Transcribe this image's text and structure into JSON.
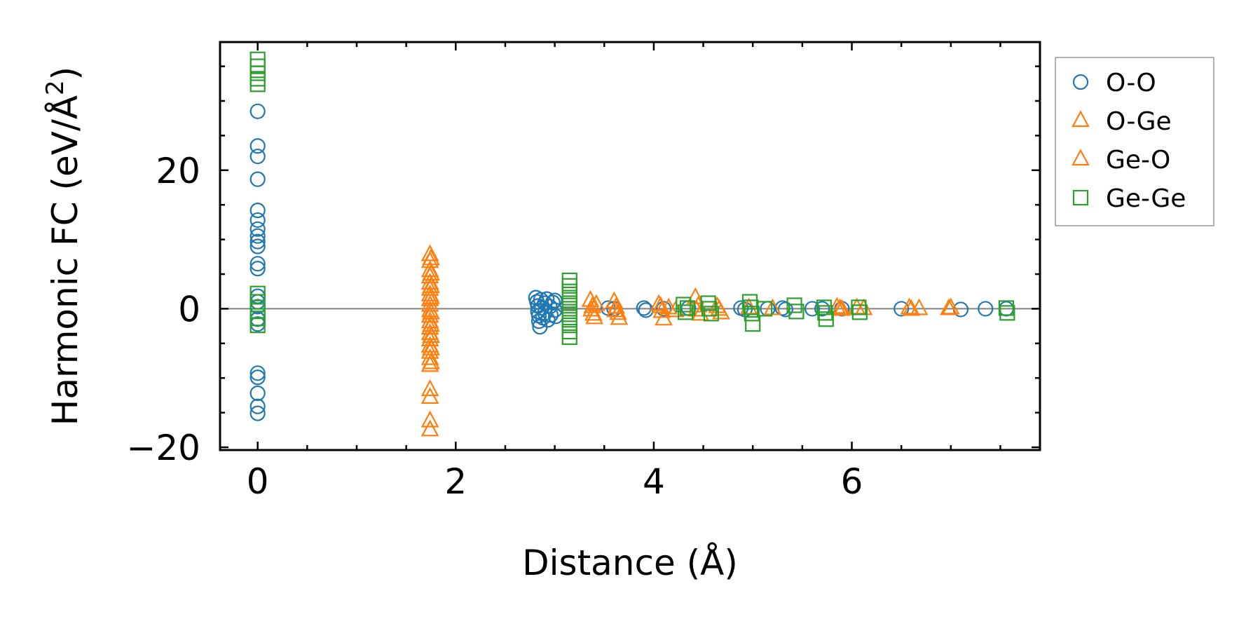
{
  "chart_data": {
    "type": "scatter",
    "xlabel": "Distance (Å)",
    "ylabel_main": "Harmonic FC (eV/Å",
    "ylabel_sup": "2",
    "ylabel_end": ")",
    "xlim": [
      -0.38,
      7.9
    ],
    "ylim": [
      -20.4,
      38.5
    ],
    "x_ticks": [
      0,
      2,
      4,
      6
    ],
    "x_tick_labels": [
      "0",
      "2",
      "4",
      "6"
    ],
    "y_ticks": [
      -20,
      0,
      20
    ],
    "y_tick_labels": [
      "−20",
      "0",
      "20"
    ],
    "zero_line": 0,
    "grid": false,
    "legend_position": "outside-right",
    "legend": [
      {
        "label": "O-O",
        "marker": "circle",
        "color": "#1f77b4"
      },
      {
        "label": "O-Ge",
        "marker": "triangle",
        "color": "#ff7f0e"
      },
      {
        "label": "Ge-O",
        "marker": "triangle",
        "color": "#ff7f0e"
      },
      {
        "label": "Ge-Ge",
        "marker": "square",
        "color": "#2ca02c"
      }
    ],
    "series": [
      {
        "name": "O-O",
        "marker": "circle",
        "color": "#1f77b4",
        "points": [
          [
            0,
            28.5
          ],
          [
            0,
            23.5
          ],
          [
            0,
            22.0
          ],
          [
            0,
            18.7
          ],
          [
            0,
            14.2
          ],
          [
            0,
            12.8
          ],
          [
            0,
            11.5
          ],
          [
            0,
            10.5
          ],
          [
            0,
            9.7
          ],
          [
            0,
            9.0
          ],
          [
            0,
            6.5
          ],
          [
            0,
            5.8
          ],
          [
            0,
            1.8
          ],
          [
            0,
            1.0
          ],
          [
            0,
            0.3
          ],
          [
            0,
            -1.5
          ],
          [
            0,
            -2.2
          ],
          [
            0,
            -9.3
          ],
          [
            0,
            -9.9
          ],
          [
            0,
            -12.2
          ],
          [
            0,
            -14.1
          ],
          [
            0,
            -15.1
          ],
          [
            2.81,
            1.6
          ],
          [
            2.82,
            1.0
          ],
          [
            2.83,
            0.4
          ],
          [
            2.83,
            -0.4
          ],
          [
            2.84,
            -1.0
          ],
          [
            2.84,
            -1.8
          ],
          [
            2.85,
            -2.6
          ],
          [
            2.86,
            1.3
          ],
          [
            2.87,
            0.1
          ],
          [
            2.88,
            -1.3
          ],
          [
            2.9,
            0.8
          ],
          [
            2.9,
            -0.6
          ],
          [
            2.92,
            1.4
          ],
          [
            2.93,
            -1.6
          ],
          [
            2.95,
            0.3
          ],
          [
            2.96,
            -0.9
          ],
          [
            2.98,
            0.9
          ],
          [
            3.0,
            -0.2
          ],
          [
            3.0,
            1.2
          ],
          [
            3.01,
            -1.1
          ],
          [
            3.54,
            0.1
          ],
          [
            3.6,
            0.0
          ],
          [
            3.9,
            0.1
          ],
          [
            3.92,
            -0.2
          ],
          [
            4.1,
            0.0
          ],
          [
            4.35,
            0.1
          ],
          [
            4.88,
            0.1
          ],
          [
            4.92,
            -0.1
          ],
          [
            5.15,
            0.0
          ],
          [
            5.3,
            0.1
          ],
          [
            5.33,
            -0.1
          ],
          [
            5.6,
            0.0
          ],
          [
            5.7,
            0.0
          ],
          [
            5.9,
            0.0
          ],
          [
            6.5,
            0.0
          ],
          [
            7.1,
            -0.1
          ],
          [
            7.35,
            0.0
          ],
          [
            7.56,
            0.0
          ]
        ]
      },
      {
        "name": "O-Ge",
        "marker": "triangle",
        "color": "#ff7f0e",
        "points": [
          [
            1.74,
            7.8
          ],
          [
            1.74,
            6.8
          ],
          [
            1.74,
            5.5
          ],
          [
            1.74,
            4.6
          ],
          [
            1.74,
            3.7
          ],
          [
            1.74,
            2.8
          ],
          [
            1.74,
            2.0
          ],
          [
            1.74,
            1.3
          ],
          [
            1.74,
            0.5
          ],
          [
            1.74,
            -0.3
          ],
          [
            1.74,
            -1.1
          ],
          [
            1.74,
            -1.9
          ],
          [
            1.74,
            -2.8
          ],
          [
            1.74,
            -3.6
          ],
          [
            1.74,
            -4.5
          ],
          [
            1.74,
            -5.4
          ],
          [
            1.74,
            -6.3
          ],
          [
            1.74,
            -7.2
          ],
          [
            1.74,
            -8.2
          ],
          [
            1.74,
            -11.7
          ],
          [
            1.74,
            -12.8
          ],
          [
            1.74,
            -16.2
          ],
          [
            1.74,
            -17.5
          ],
          [
            3.36,
            1.2
          ],
          [
            3.38,
            0.3
          ],
          [
            3.39,
            -0.8
          ],
          [
            3.4,
            -1.3
          ],
          [
            3.42,
            0.6
          ],
          [
            3.6,
            1.0
          ],
          [
            3.62,
            0.2
          ],
          [
            3.64,
            -0.7
          ],
          [
            3.65,
            -1.4
          ],
          [
            4.05,
            0.6
          ],
          [
            4.08,
            -0.4
          ],
          [
            4.1,
            -1.5
          ],
          [
            4.15,
            0.1
          ],
          [
            4.22,
            -0.3
          ],
          [
            4.42,
            1.6
          ],
          [
            4.45,
            0.4
          ],
          [
            4.47,
            -0.8
          ],
          [
            4.64,
            0.3
          ],
          [
            4.68,
            -0.6
          ],
          [
            4.96,
            0.1
          ],
          [
            5.2,
            0.0
          ],
          [
            5.85,
            0.2
          ],
          [
            5.9,
            -0.1
          ],
          [
            6.05,
            0.1
          ],
          [
            6.12,
            0.0
          ],
          [
            6.58,
            0.1
          ],
          [
            6.68,
            0.0
          ],
          [
            6.98,
            0.0
          ]
        ]
      },
      {
        "name": "Ge-O",
        "marker": "triangle",
        "color": "#ff7f0e",
        "points": [
          [
            1.75,
            7.2
          ],
          [
            1.75,
            5.0
          ],
          [
            1.75,
            3.2
          ],
          [
            1.75,
            1.6
          ],
          [
            1.75,
            -0.6
          ],
          [
            1.75,
            -2.4
          ],
          [
            1.75,
            -4.0
          ],
          [
            1.75,
            -5.8
          ],
          [
            1.75,
            -7.8
          ],
          [
            3.37,
            -0.2
          ],
          [
            3.61,
            -0.3
          ],
          [
            4.07,
            0.3
          ],
          [
            4.43,
            -0.2
          ],
          [
            4.66,
            -0.1
          ],
          [
            5.88,
            0.0
          ],
          [
            6.6,
            -0.1
          ],
          [
            7.0,
            0.1
          ]
        ]
      },
      {
        "name": "Ge-Ge",
        "marker": "square",
        "color": "#2ca02c",
        "points": [
          [
            0,
            36.0
          ],
          [
            0,
            35.0
          ],
          [
            0,
            34.0
          ],
          [
            0,
            33.2
          ],
          [
            0,
            32.4
          ],
          [
            0,
            2.2
          ],
          [
            0,
            1.0
          ],
          [
            0,
            -0.3
          ],
          [
            0,
            -1.4
          ],
          [
            0,
            -2.4
          ],
          [
            3.15,
            4.1
          ],
          [
            3.15,
            3.3
          ],
          [
            3.15,
            2.5
          ],
          [
            3.15,
            1.6
          ],
          [
            3.15,
            0.8
          ],
          [
            3.15,
            0.0
          ],
          [
            3.15,
            -0.8
          ],
          [
            3.15,
            -1.6
          ],
          [
            3.15,
            -2.4
          ],
          [
            3.15,
            -3.3
          ],
          [
            3.15,
            -4.1
          ],
          [
            4.3,
            0.6
          ],
          [
            4.32,
            -0.5
          ],
          [
            4.34,
            0.1
          ],
          [
            4.55,
            0.8
          ],
          [
            4.56,
            0.0
          ],
          [
            4.58,
            -0.7
          ],
          [
            4.97,
            1.0
          ],
          [
            4.98,
            0.2
          ],
          [
            4.99,
            -0.7
          ],
          [
            5.0,
            -2.2
          ],
          [
            5.12,
            0.0
          ],
          [
            5.42,
            0.5
          ],
          [
            5.44,
            -0.4
          ],
          [
            5.72,
            0.2
          ],
          [
            5.73,
            -0.6
          ],
          [
            5.74,
            -1.5
          ],
          [
            6.07,
            0.2
          ],
          [
            6.08,
            -0.5
          ],
          [
            7.56,
            0.1
          ],
          [
            7.57,
            -0.6
          ]
        ]
      }
    ]
  }
}
